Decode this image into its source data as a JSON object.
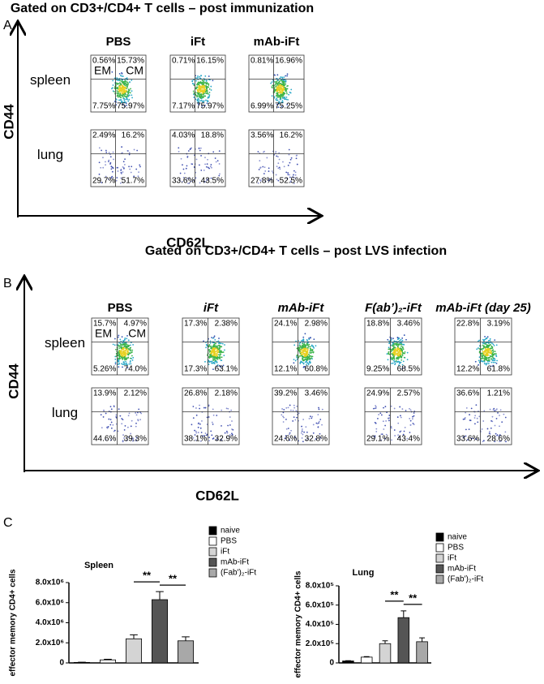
{
  "panel_a": {
    "label": "A",
    "title": "Gated on CD3+/CD4+ T cells – post immunization",
    "y_axis": "CD44",
    "x_axis": "CD62L",
    "columns": [
      "PBS",
      "iFt",
      "mAb-iFt"
    ],
    "rows": [
      "spleen",
      "lung"
    ],
    "gates": [
      "EM",
      "CM"
    ],
    "plots": [
      [
        [
          "0.56%",
          "15.73%",
          "7.75%",
          "75.97%"
        ],
        [
          "0.71%",
          "16.15%",
          "7.17%",
          "75.97%"
        ],
        [
          "0.81%",
          "16.96%",
          "6.99%",
          "75.25%"
        ]
      ],
      [
        [
          "2.49%",
          "16.2%",
          "29.7%",
          "51.7%"
        ],
        [
          "4.03%",
          "18.8%",
          "33.6%",
          "43.5%"
        ],
        [
          "3.56%",
          "16.2%",
          "27.8%",
          "52.5%"
        ]
      ]
    ]
  },
  "panel_b": {
    "label": "B",
    "title": "Gated on  CD3+/CD4+ T cells – post LVS infection",
    "y_axis": "CD44",
    "x_axis": "CD62L",
    "columns": [
      "PBS",
      "iFt",
      "mAb-iFt",
      "F(ab’)₂-iFt",
      "mAb-iFt (day 25)"
    ],
    "rows": [
      "spleen",
      "lung"
    ],
    "gates": [
      "EM",
      "CM"
    ],
    "plots": [
      [
        [
          "15.7%",
          "4.97%",
          "5.26%",
          "74.0%"
        ],
        [
          "17.3%",
          "2.38%",
          "17.3%",
          "63.1%"
        ],
        [
          "24.1%",
          "2.98%",
          "12.1%",
          "60.8%"
        ],
        [
          "18.8%",
          "3.46%",
          "9.25%",
          "68.5%"
        ],
        [
          "22.8%",
          "3.19%",
          "12.2%",
          "61.8%"
        ]
      ],
      [
        [
          "13.9%",
          "2.12%",
          "44.6%",
          "39.3%"
        ],
        [
          "26.8%",
          "2.18%",
          "38.1%",
          "32.9%"
        ],
        [
          "39.2%",
          "3.46%",
          "24.6%",
          "32.8%"
        ],
        [
          "24.9%",
          "2.57%",
          "29.1%",
          "43.4%"
        ],
        [
          "36.6%",
          "1.21%",
          "33.6%",
          "28.6%"
        ]
      ]
    ]
  },
  "panel_c": {
    "label": "C"
  },
  "chart_data": [
    {
      "type": "bar",
      "title": "Spleen",
      "ylabel": "effector memory CD4+ cells",
      "categories": [
        "naive",
        "PBS",
        "iFt",
        "mAb-iFt",
        "(Fab')₂-iFt"
      ],
      "values": [
        50000,
        300000,
        2400000,
        6300000,
        2200000
      ],
      "errors": [
        20000,
        60000,
        400000,
        800000,
        400000
      ],
      "colors": [
        "#000000",
        "#ffffff",
        "#d4d4d4",
        "#555555",
        "#a8a8a8"
      ],
      "ylim": [
        0,
        8000000
      ],
      "yticks": [
        0,
        {
          "value": 2000000,
          "label": "2.0x10⁶"
        },
        {
          "value": 4000000,
          "label": "4.0x10⁶"
        },
        {
          "value": 6000000,
          "label": "6.0x10⁶"
        },
        {
          "value": 8000000,
          "label": "8.0x10⁶"
        }
      ],
      "significance": [
        {
          "label": "**",
          "from": "iFt",
          "to": "mAb-iFt"
        },
        {
          "label": "**",
          "from": "mAb-iFt",
          "to": "(Fab')₂-iFt"
        }
      ]
    },
    {
      "type": "bar",
      "title": "Lung",
      "ylabel": "effector memory CD4+ cells",
      "categories": [
        "naive",
        "PBS",
        "iFt",
        "mAb-iFt",
        "(Fab')₂-iFt"
      ],
      "values": [
        20000,
        60000,
        200000,
        470000,
        220000
      ],
      "errors": [
        3000,
        5000,
        30000,
        70000,
        40000
      ],
      "colors": [
        "#000000",
        "#ffffff",
        "#d4d4d4",
        "#555555",
        "#a8a8a8"
      ],
      "ylim": [
        0,
        800000
      ],
      "yticks": [
        0,
        {
          "value": 200000,
          "label": "2.0x10⁵"
        },
        {
          "value": 400000,
          "label": "4.0x10⁵"
        },
        {
          "value": 600000,
          "label": "6.0x10⁵"
        },
        {
          "value": 800000,
          "label": "8.0x10⁵"
        }
      ],
      "significance": [
        {
          "label": "**",
          "from": "iFt",
          "to": "mAb-iFt"
        },
        {
          "label": "**",
          "from": "mAb-iFt",
          "to": "(Fab')₂-iFt"
        }
      ]
    }
  ]
}
